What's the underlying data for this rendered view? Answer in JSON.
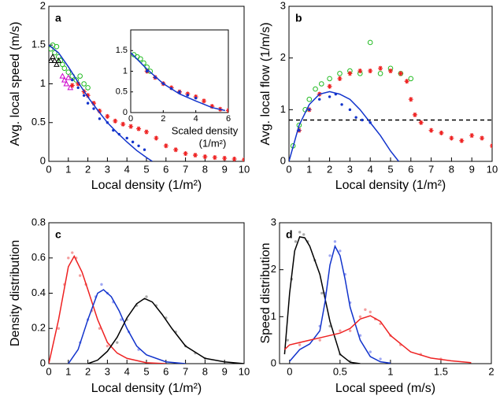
{
  "chart_data": [
    {
      "type": "scatter",
      "label": "a",
      "xlabel": "Local density (1/m²)",
      "ylabel": "Avg. local speed (m/s)",
      "xlim": [
        0,
        10
      ],
      "ylim": [
        0,
        2
      ],
      "xticks": [
        0,
        1,
        2,
        3,
        4,
        5,
        6,
        7,
        8,
        9,
        10
      ],
      "yticks": [
        0,
        0.5,
        1,
        1.5,
        2
      ],
      "series": [
        {
          "marker": "circle",
          "color": "#22bb22",
          "x": [
            0.1,
            0.2,
            0.3,
            0.4,
            0.5,
            0.6,
            0.7,
            0.8,
            1.0,
            1.2,
            1.4,
            1.6,
            1.8,
            2.0
          ],
          "values": [
            1.45,
            1.5,
            1.4,
            1.48,
            1.35,
            1.3,
            1.25,
            1.2,
            1.15,
            1.1,
            1.05,
            1.1,
            1.0,
            0.95
          ]
        },
        {
          "marker": "triangle",
          "color": "#000000",
          "x": [
            0.1,
            0.2,
            0.3,
            0.4,
            0.5
          ],
          "values": [
            1.3,
            1.35,
            1.3,
            1.25,
            1.3
          ]
        },
        {
          "marker": "triangle",
          "color": "#cc00cc",
          "x": [
            0.7,
            0.8,
            0.9,
            1.0,
            1.1
          ],
          "values": [
            1.1,
            1.05,
            1.0,
            1.08,
            0.95
          ]
        },
        {
          "marker": "star",
          "color": "#ee2222",
          "x": [
            1.2,
            1.5,
            1.8,
            2.0,
            2.3,
            2.6,
            3.0,
            3.4,
            3.8,
            4.2,
            4.6,
            5.0,
            5.5,
            6.0,
            6.5,
            7.0,
            7.5,
            8.0,
            8.5,
            9.0,
            9.5,
            10.0
          ],
          "values": [
            0.98,
            1.0,
            0.9,
            0.85,
            0.75,
            0.65,
            0.58,
            0.52,
            0.48,
            0.45,
            0.42,
            0.38,
            0.3,
            0.2,
            0.15,
            0.1,
            0.08,
            0.06,
            0.05,
            0.04,
            0.03,
            0.02
          ]
        },
        {
          "marker": "dot",
          "color": "#1133cc",
          "x": [
            1.2,
            1.5,
            1.8,
            2.0,
            2.3,
            2.6,
            3.0,
            3.3,
            3.6,
            4.0,
            4.3,
            4.6,
            4.9
          ],
          "values": [
            1.05,
            0.95,
            0.85,
            0.75,
            0.68,
            0.55,
            0.5,
            0.4,
            0.35,
            0.3,
            0.25,
            0.2,
            0.15
          ]
        },
        {
          "line": "solid",
          "color": "#1133cc",
          "x": [
            0,
            0.5,
            1,
            1.5,
            2,
            2.5,
            3,
            3.5,
            4,
            4.5,
            5,
            5.3
          ],
          "values": [
            1.5,
            1.4,
            1.22,
            1.02,
            0.83,
            0.66,
            0.5,
            0.37,
            0.25,
            0.14,
            0.05,
            0
          ]
        }
      ]
    },
    {
      "type": "scatter",
      "xlabel": [
        "Scaled density",
        "(1/m²)"
      ],
      "xlim": [
        0,
        6
      ],
      "ylim": [
        0,
        2
      ],
      "xticks": [
        0,
        2,
        4,
        6
      ],
      "yticks": [
        0,
        0.5,
        1,
        1.5
      ],
      "series": [
        {
          "marker": "circle",
          "color": "#22bb22",
          "x": [
            0.2,
            0.4,
            0.6,
            0.8,
            1.0,
            1.2
          ],
          "values": [
            1.4,
            1.35,
            1.3,
            1.2,
            1.1,
            1.0
          ]
        },
        {
          "marker": "star",
          "color": "#ee2222",
          "x": [
            1,
            1.5,
            2,
            2.5,
            3,
            3.5,
            4,
            4.5,
            5,
            5.5,
            6
          ],
          "values": [
            1.0,
            0.85,
            0.7,
            0.6,
            0.5,
            0.45,
            0.38,
            0.28,
            0.15,
            0.08,
            0.05
          ]
        },
        {
          "marker": "dot",
          "color": "#1133cc",
          "x": [
            1,
            1.5,
            2,
            2.5,
            3,
            3.5,
            4
          ],
          "values": [
            1.0,
            0.85,
            0.7,
            0.58,
            0.5,
            0.42,
            0.35
          ]
        },
        {
          "line": "solid",
          "color": "#1133cc",
          "x": [
            0,
            1,
            2,
            3,
            4,
            5,
            5.8
          ],
          "values": [
            1.45,
            1.05,
            0.7,
            0.45,
            0.28,
            0.12,
            0.05
          ]
        }
      ]
    },
    {
      "type": "scatter",
      "label": "b",
      "xlabel": "Local density (1/m²)",
      "ylabel": "Avg. local flow (1/m/s)",
      "xlim": [
        0,
        10
      ],
      "ylim": [
        0,
        3
      ],
      "xticks": [
        0,
        1,
        2,
        3,
        4,
        5,
        6,
        7,
        8,
        9,
        10
      ],
      "yticks": [
        0,
        1,
        2,
        3
      ],
      "series": [
        {
          "line": "dashed",
          "color": "#000000",
          "x": [
            0,
            10
          ],
          "values": [
            0.8,
            0.8
          ]
        },
        {
          "marker": "circle",
          "color": "#22bb22",
          "x": [
            0.2,
            0.5,
            0.8,
            1.0,
            1.3,
            1.6,
            2.0,
            2.5,
            3.0,
            3.5,
            4.0,
            4.5,
            5.0,
            5.5,
            6.0
          ],
          "values": [
            0.3,
            0.7,
            1.0,
            1.2,
            1.4,
            1.5,
            1.6,
            1.7,
            1.75,
            1.7,
            2.3,
            1.7,
            1.8,
            1.7,
            1.6
          ]
        },
        {
          "marker": "star",
          "color": "#ee2222",
          "x": [
            0.5,
            1.0,
            1.5,
            2.0,
            2.5,
            3.0,
            3.5,
            4.0,
            4.5,
            5.0,
            5.5,
            5.8,
            6.0,
            6.2,
            6.5,
            7.0,
            7.5,
            8.0,
            8.5,
            9.0,
            9.5,
            10.0
          ],
          "values": [
            0.6,
            1.0,
            1.3,
            1.45,
            1.6,
            1.7,
            1.75,
            1.75,
            1.8,
            1.75,
            1.7,
            1.55,
            1.2,
            0.9,
            0.75,
            0.6,
            0.55,
            0.45,
            0.4,
            0.5,
            0.45,
            0.3
          ]
        },
        {
          "marker": "dot",
          "color": "#1133cc",
          "x": [
            0.5,
            1,
            1.5,
            2,
            2.3,
            2.6,
            3,
            3.3,
            3.6,
            4
          ],
          "values": [
            0.6,
            1.0,
            1.2,
            1.25,
            1.3,
            1.1,
            1.0,
            0.85,
            0.8,
            0.75
          ]
        },
        {
          "line": "solid",
          "color": "#1133cc",
          "x": [
            0,
            0.5,
            1,
            1.5,
            2,
            2.5,
            3,
            3.5,
            4,
            4.5,
            5,
            5.4
          ],
          "values": [
            0,
            0.7,
            1.1,
            1.3,
            1.35,
            1.3,
            1.2,
            1.0,
            0.75,
            0.5,
            0.2,
            0
          ]
        }
      ]
    },
    {
      "type": "scatter",
      "label": "c",
      "xlabel": "Local density (1/m²)",
      "ylabel": "Density distribution",
      "xlim": [
        0,
        10
      ],
      "ylim": [
        0,
        0.8
      ],
      "xticks": [
        0,
        1,
        2,
        3,
        4,
        5,
        6,
        7,
        8,
        9,
        10
      ],
      "yticks": [
        0,
        0.2,
        0.4,
        0.6,
        0.8
      ],
      "series": [
        {
          "marker": "dot",
          "color": "#f4a0a0",
          "x": [
            0.5,
            0.8,
            1.0,
            1.2,
            1.4,
            1.6,
            1.9,
            2.2,
            2.6,
            3.0
          ],
          "values": [
            0.2,
            0.45,
            0.6,
            0.63,
            0.6,
            0.5,
            0.45,
            0.3,
            0.2,
            0.1
          ]
        },
        {
          "marker": "dot",
          "color": "#a0a8f4",
          "x": [
            1.6,
            2.0,
            2.4,
            2.7,
            3.0,
            3.3,
            3.7,
            4.1,
            4.6
          ],
          "values": [
            0.12,
            0.25,
            0.38,
            0.45,
            0.4,
            0.35,
            0.25,
            0.18,
            0.08
          ]
        },
        {
          "marker": "dot",
          "color": "#aaaaaa",
          "x": [
            3.5,
            4.0,
            4.5,
            5.0,
            5.5,
            6.0,
            6.5,
            7.0,
            7.5,
            8.0
          ],
          "values": [
            0.12,
            0.25,
            0.33,
            0.38,
            0.33,
            0.26,
            0.18,
            0.1,
            0.06,
            0.03
          ]
        },
        {
          "line": "solid",
          "color": "#ee2222",
          "x": [
            0,
            0.5,
            1,
            1.3,
            1.7,
            2,
            2.5,
            3,
            3.5,
            4,
            5,
            6
          ],
          "values": [
            0,
            0.25,
            0.55,
            0.61,
            0.52,
            0.42,
            0.25,
            0.12,
            0.06,
            0.03,
            0.005,
            0
          ]
        },
        {
          "line": "solid",
          "color": "#1133cc",
          "x": [
            1,
            1.5,
            2,
            2.5,
            2.8,
            3.2,
            3.6,
            4,
            4.5,
            5,
            6,
            7
          ],
          "values": [
            0,
            0.08,
            0.25,
            0.4,
            0.42,
            0.38,
            0.3,
            0.2,
            0.1,
            0.05,
            0.01,
            0
          ]
        },
        {
          "line": "solid",
          "color": "#000000",
          "x": [
            2,
            2.5,
            3,
            3.5,
            4,
            4.5,
            4.9,
            5.3,
            5.8,
            6.3,
            7,
            8,
            9,
            10
          ],
          "values": [
            0,
            0.02,
            0.07,
            0.15,
            0.26,
            0.34,
            0.37,
            0.35,
            0.28,
            0.2,
            0.1,
            0.03,
            0.01,
            0
          ]
        }
      ]
    },
    {
      "type": "scatter",
      "label": "d",
      "xlabel": "Local speed (m/s)",
      "ylabel": "Speed distribution",
      "xlim": [
        -0.1,
        2
      ],
      "ylim": [
        0,
        3
      ],
      "xticks": [
        0,
        0.5,
        1,
        1.5,
        2
      ],
      "yticks": [
        0,
        1,
        2,
        3
      ],
      "series": [
        {
          "marker": "dot",
          "color": "#aaaaaa",
          "x": [
            -0.02,
            0.02,
            0.06,
            0.1,
            0.14,
            0.18,
            0.25,
            0.32,
            0.4,
            0.5,
            0.6
          ],
          "values": [
            0.5,
            1.8,
            2.6,
            2.8,
            2.75,
            2.6,
            2.2,
            1.5,
            0.8,
            0.2,
            0.05
          ]
        },
        {
          "marker": "dot",
          "color": "#a0a8f4",
          "x": [
            0.3,
            0.35,
            0.4,
            0.45,
            0.5,
            0.55,
            0.6,
            0.7,
            0.8,
            0.9
          ],
          "values": [
            0.8,
            1.5,
            2.3,
            2.6,
            2.4,
            1.9,
            1.3,
            0.6,
            0.25,
            0.1
          ]
        },
        {
          "marker": "dot",
          "color": "#f4a0a0",
          "x": [
            0.1,
            0.3,
            0.5,
            0.6,
            0.7,
            0.75,
            0.8,
            0.85,
            0.9,
            1.0,
            1.1,
            1.3,
            1.5
          ],
          "values": [
            0.4,
            0.5,
            0.7,
            0.7,
            1.0,
            1.15,
            1.1,
            0.95,
            0.85,
            0.6,
            0.4,
            0.2,
            0.1
          ]
        },
        {
          "line": "solid",
          "color": "#000000",
          "x": [
            -0.05,
            0,
            0.05,
            0.1,
            0.15,
            0.2,
            0.3,
            0.4,
            0.5,
            0.6,
            0.7
          ],
          "values": [
            0.2,
            1.5,
            2.4,
            2.7,
            2.68,
            2.5,
            1.9,
            0.9,
            0.2,
            0.03,
            0
          ]
        },
        {
          "line": "solid",
          "color": "#1133cc",
          "x": [
            0,
            0.1,
            0.2,
            0.3,
            0.35,
            0.4,
            0.45,
            0.5,
            0.55,
            0.6,
            0.7,
            0.8,
            0.9,
            1.0
          ],
          "values": [
            0.05,
            0.3,
            0.42,
            0.7,
            1.3,
            2.1,
            2.5,
            2.3,
            1.8,
            1.2,
            0.5,
            0.15,
            0.04,
            0.01
          ]
        },
        {
          "line": "solid",
          "color": "#ee2222",
          "x": [
            -0.05,
            0,
            0.1,
            0.2,
            0.3,
            0.4,
            0.5,
            0.6,
            0.7,
            0.8,
            0.9,
            1.0,
            1.2,
            1.4,
            1.6,
            1.8
          ],
          "values": [
            0.3,
            0.4,
            0.45,
            0.5,
            0.55,
            0.6,
            0.65,
            0.75,
            0.95,
            1.02,
            0.9,
            0.6,
            0.25,
            0.12,
            0.06,
            0.02
          ]
        }
      ]
    }
  ]
}
